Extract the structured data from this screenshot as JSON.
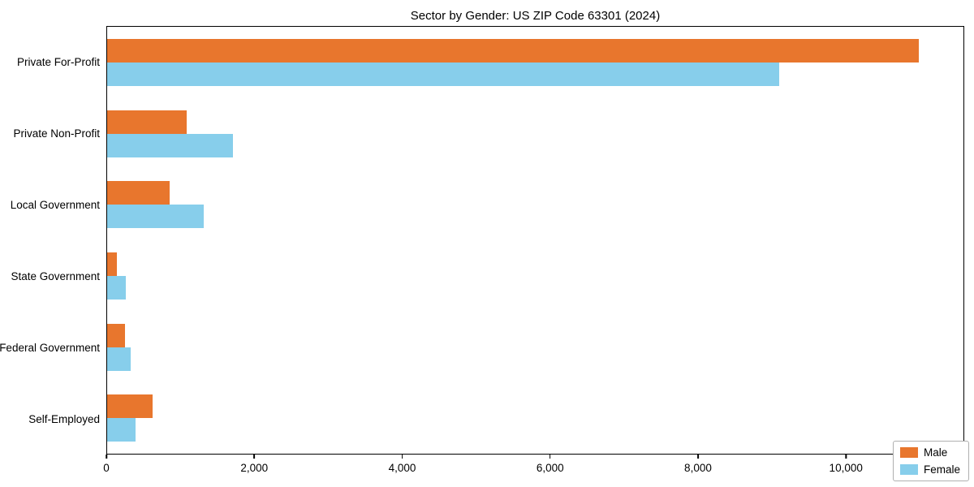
{
  "chart_data": {
    "type": "bar",
    "orientation": "horizontal",
    "title": "Sector by Gender: US ZIP Code 63301 (2024)",
    "categories": [
      "Private For-Profit",
      "Private Non-Profit",
      "Local Government",
      "State Government",
      "Federal Government",
      "Self-Employed"
    ],
    "series": [
      {
        "name": "Male",
        "color": "#e8762d",
        "values": [
          11000,
          1080,
          850,
          130,
          240,
          620
        ]
      },
      {
        "name": "Female",
        "color": "#87ceeb",
        "values": [
          9100,
          1700,
          1310,
          250,
          320,
          390
        ]
      }
    ],
    "xlim": [
      0,
      11600
    ],
    "xticks": [
      0,
      2000,
      4000,
      6000,
      8000,
      10000
    ],
    "xtick_labels": [
      "0",
      "2,000",
      "4,000",
      "6,000",
      "8,000",
      "10,000"
    ],
    "xlabel": "",
    "ylabel": "",
    "grid": false,
    "legend_position": "lower right"
  }
}
